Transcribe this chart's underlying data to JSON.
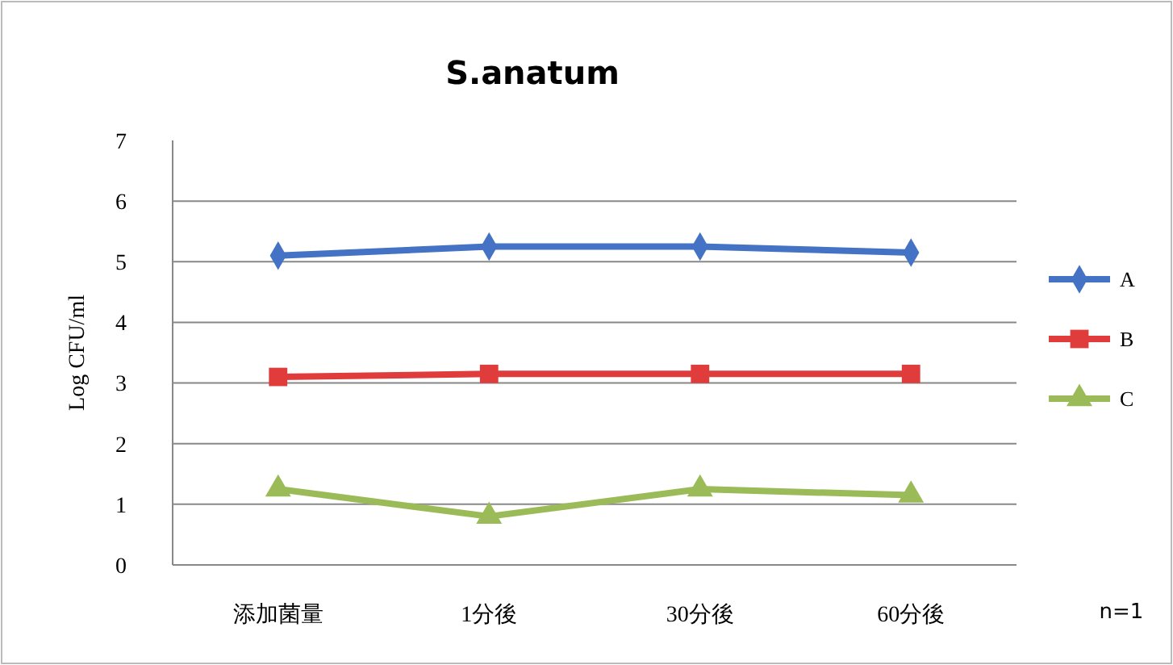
{
  "chart_data": {
    "type": "line",
    "title": "S.anatum",
    "ylabel": "Log CFU/ml",
    "categories": [
      "添加菌量",
      "1分後",
      "30分後",
      "60分後"
    ],
    "series": [
      {
        "name": "A",
        "color": "#4472c4",
        "marker": "diamond",
        "values": [
          5.1,
          5.25,
          5.25,
          5.15
        ]
      },
      {
        "name": "B",
        "color": "#e03c3c",
        "marker": "square",
        "values": [
          3.1,
          3.15,
          3.15,
          3.15
        ]
      },
      {
        "name": "C",
        "color": "#9bbb59",
        "marker": "triangle",
        "values": [
          1.25,
          0.8,
          1.25,
          1.15
        ]
      }
    ],
    "ylim": [
      0,
      7
    ],
    "yticks": [
      0,
      1,
      2,
      3,
      4,
      5,
      6,
      7
    ],
    "grid": "y",
    "legend": "right",
    "annotations": [
      "n=1"
    ]
  }
}
